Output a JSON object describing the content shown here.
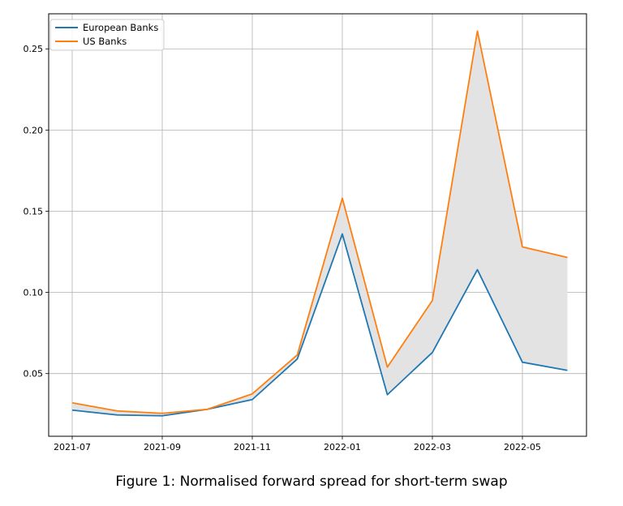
{
  "caption": "Figure 1: Normalised forward spread for short-term swap",
  "chart_data": {
    "type": "line",
    "x": [
      "2021-07",
      "2021-08",
      "2021-09",
      "2021-10",
      "2021-11",
      "2021-12",
      "2022-01",
      "2022-02",
      "2022-03",
      "2022-04",
      "2022-05",
      "2022-06"
    ],
    "series": [
      {
        "name": "European Banks",
        "color": "#1f77b4",
        "values": [
          0.0275,
          0.0245,
          0.024,
          0.028,
          0.034,
          0.059,
          0.136,
          0.037,
          0.063,
          0.114,
          0.057,
          0.052
        ]
      },
      {
        "name": "US Banks",
        "color": "#ff7f0e",
        "values": [
          0.032,
          0.027,
          0.0255,
          0.028,
          0.0375,
          0.0615,
          0.158,
          0.054,
          0.095,
          0.261,
          0.128,
          0.1215
        ]
      }
    ],
    "fill_between": {
      "color": "#e3e3e3",
      "between_series": [
        0,
        1
      ]
    },
    "xticks": [
      "2021-07",
      "2021-09",
      "2021-11",
      "2022-01",
      "2022-03",
      "2022-05"
    ],
    "yticks": [
      "0.05",
      "0.10",
      "0.15",
      "0.20",
      "0.25"
    ],
    "xlabel": "",
    "ylabel": "",
    "ylim": [
      0.0114,
      0.2716
    ],
    "grid": true,
    "legend": "top-left"
  }
}
